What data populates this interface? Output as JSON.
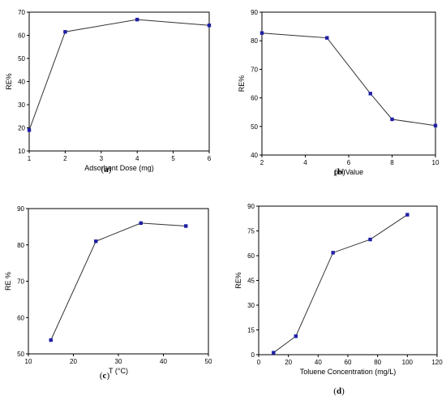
{
  "chart_data": [
    {
      "panel": "(a)",
      "panel_letter": "a",
      "type": "line",
      "xlabel": "Adsorbent Dose (mg)",
      "ylabel": "RE%",
      "xlim": [
        1,
        6
      ],
      "ylim": [
        10,
        70
      ],
      "xticks": [
        1,
        2,
        3,
        4,
        5,
        6
      ],
      "yticks": [
        10,
        20,
        30,
        40,
        50,
        60,
        70
      ],
      "series": [
        {
          "x": [
            1,
            2,
            4,
            6
          ],
          "y": [
            19,
            61.5,
            66.8,
            64.3
          ],
          "color": "#1f1fa8"
        }
      ],
      "grid": false
    },
    {
      "panel": "(b)",
      "panel_letter": "b",
      "type": "line",
      "xlabel": "pH Value",
      "ylabel": "RE%",
      "xlim": [
        2,
        10
      ],
      "ylim": [
        40,
        90
      ],
      "xticks": [
        2,
        4,
        6,
        8,
        10
      ],
      "yticks": [
        40,
        50,
        60,
        70,
        80,
        90
      ],
      "series": [
        {
          "x": [
            2,
            5,
            7,
            8,
            10
          ],
          "y": [
            82.7,
            81.0,
            61.5,
            52.5,
            50.3
          ],
          "color": "#1f1fa8"
        }
      ],
      "grid": false
    },
    {
      "panel": "(c)",
      "panel_letter": "c",
      "type": "line",
      "xlabel": "T (°C)",
      "ylabel": "RE %",
      "xlim": [
        10,
        50
      ],
      "ylim": [
        50,
        90
      ],
      "xticks": [
        10,
        20,
        30,
        40,
        50
      ],
      "yticks": [
        50,
        60,
        70,
        80,
        90
      ],
      "series": [
        {
          "x": [
            15,
            25,
            35,
            45
          ],
          "y": [
            53.8,
            81.0,
            86.0,
            85.2
          ],
          "color": "#1f1fa8"
        }
      ],
      "grid": false
    },
    {
      "panel": "(d)",
      "panel_letter": "d",
      "type": "line",
      "xlabel": "Toluene Concentration (mg/L)",
      "ylabel": "RE%",
      "xlim": [
        0,
        120
      ],
      "ylim": [
        0,
        90
      ],
      "xticks": [
        0,
        20,
        40,
        60,
        80,
        100,
        120
      ],
      "yticks": [
        0,
        15,
        30,
        45,
        60,
        75,
        90
      ],
      "series": [
        {
          "x": [
            10,
            25,
            50,
            75,
            100
          ],
          "y": [
            1.2,
            11.2,
            61.8,
            69.8,
            84.8
          ],
          "color": "#1f1fa8"
        }
      ],
      "grid": false
    }
  ]
}
